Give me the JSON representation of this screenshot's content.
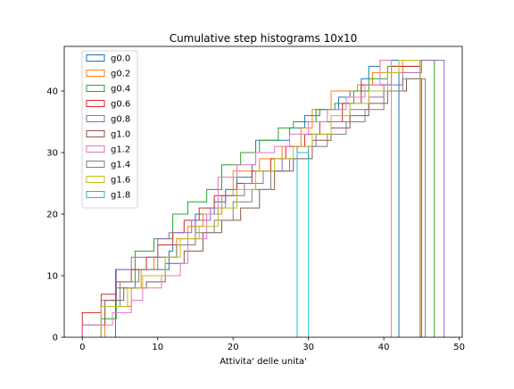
{
  "chart_data": {
    "type": "step",
    "title": "Cumulative step histograms 10x10",
    "xlabel": "Attivita' delle unita'",
    "ylabel": "",
    "xlim": [
      -2.4,
      50.4
    ],
    "ylim": [
      0,
      47.25
    ],
    "xticks": [
      0,
      10,
      20,
      30,
      40,
      50
    ],
    "yticks": [
      0,
      10,
      20,
      30,
      40
    ],
    "grid": false,
    "legend_position": "top-left",
    "series": [
      {
        "name": "g0.0",
        "color": "#1f77b4",
        "x": [
          4.4,
          11.5,
          12.0,
          15.0,
          17.5,
          19.0,
          20.5,
          22.5,
          23.0,
          27.5,
          29.5,
          31.5,
          34.0,
          35.5,
          37.0,
          38.0,
          39.5,
          42.0
        ],
        "y": [
          11,
          14,
          15,
          20,
          22,
          24,
          26,
          28,
          32,
          34,
          36,
          37,
          39,
          40,
          42,
          44,
          45,
          45
        ]
      },
      {
        "name": "g0.2",
        "color": "#ff7f0e",
        "x": [
          3.0,
          6.5,
          7.8,
          9.5,
          12.5,
          14.0,
          16.0,
          18.5,
          20.0,
          23.5,
          26.5,
          29.0,
          30.5,
          33.0,
          36.5,
          38.5,
          42.5,
          44.8
        ],
        "y": [
          5,
          8,
          11,
          13,
          16,
          18,
          20,
          23,
          27,
          29,
          31,
          34,
          37,
          40,
          41,
          43,
          45,
          45
        ]
      },
      {
        "name": "g0.4",
        "color": "#2ca02c",
        "x": [
          2.5,
          4.5,
          7.0,
          9.5,
          12.0,
          14.0,
          16.5,
          18.5,
          21.0,
          23.5,
          26.0,
          28.0,
          31.0,
          33.5,
          36.0,
          38.0,
          40.5,
          44.8,
          46.7
        ],
        "y": [
          3,
          8,
          14,
          16,
          20,
          22,
          24,
          28,
          30,
          32,
          34,
          35,
          37,
          38,
          40,
          42,
          44,
          45,
          45
        ]
      },
      {
        "name": "g0.6",
        "color": "#d62728",
        "x": [
          0.0,
          2.5,
          4.5,
          6.5,
          8.5,
          10.0,
          12.0,
          13.5,
          15.5,
          17.5,
          20.5,
          22.5,
          25.0,
          27.0,
          29.5,
          31.5,
          34.5,
          37.0,
          41.0,
          44.8
        ],
        "y": [
          4,
          7,
          9,
          11,
          13,
          15,
          17,
          19,
          21,
          23,
          25,
          27,
          29,
          31,
          33,
          35,
          38,
          41,
          44,
          44
        ]
      },
      {
        "name": "g0.8",
        "color": "#9467bd",
        "x": [
          2.5,
          4.5,
          6.5,
          10.0,
          11.5,
          14.5,
          17.0,
          19.0,
          21.5,
          24.0,
          26.5,
          28.5,
          31.0,
          33.0,
          35.5,
          38.0,
          40.0,
          42.5,
          45.0,
          48.0
        ],
        "y": [
          6,
          11,
          13,
          16,
          17,
          19,
          21,
          23,
          25,
          27,
          29,
          31,
          33,
          35,
          37,
          39,
          41,
          43,
          45,
          45
        ]
      },
      {
        "name": "g1.0",
        "color": "#8c564b",
        "x": [
          0.0,
          3.0,
          5.5,
          8.5,
          11.0,
          13.5,
          16.0,
          18.5,
          21.0,
          23.5,
          25.5,
          28.0,
          30.5,
          33.0,
          35.5,
          38.0,
          40.5,
          43.0,
          45.0
        ],
        "y": [
          2,
          6,
          8,
          9,
          12,
          14,
          17,
          19,
          21,
          24,
          27,
          29,
          32,
          34,
          36,
          38,
          40,
          42,
          42
        ]
      },
      {
        "name": "g1.2",
        "color": "#e377c2",
        "x": [
          0.0,
          4.0,
          6.5,
          8.0,
          10.5,
          13.0,
          14.0,
          16.5,
          18.0,
          20.5,
          23.0,
          25.5,
          27.5,
          30.0,
          32.5,
          35.0,
          37.5,
          39.5,
          41.0
        ],
        "y": [
          2,
          4,
          6,
          8,
          10,
          12,
          16,
          20,
          26,
          28,
          30,
          31,
          33,
          35,
          37,
          39,
          41,
          45,
          45
        ]
      },
      {
        "name": "g1.4",
        "color": "#7f7f7f",
        "x": [
          2.5,
          5.0,
          7.5,
          10.0,
          12.5,
          15.0,
          17.5,
          20.0,
          22.5,
          25.0,
          27.5,
          30.0,
          32.5,
          35.0,
          37.5,
          40.0,
          42.5,
          45.5
        ],
        "y": [
          5,
          9,
          11,
          13,
          15,
          17,
          19,
          22,
          24,
          27,
          29,
          31,
          33,
          35,
          37,
          40,
          42,
          42
        ]
      },
      {
        "name": "g1.6",
        "color": "#bcbd22",
        "x": [
          2.5,
          6.0,
          8.0,
          11.0,
          13.0,
          15.5,
          18.0,
          20.5,
          23.0,
          25.5,
          28.0,
          30.5,
          33.0,
          35.5,
          38.0,
          40.5,
          42.0,
          44.8
        ],
        "y": [
          5,
          8,
          10,
          13,
          16,
          18,
          21,
          24,
          27,
          29,
          31,
          33,
          36,
          38,
          40,
          43,
          45,
          45
        ]
      },
      {
        "name": "g1.8",
        "color": "#17becf",
        "x": [
          28.5,
          30.0
        ],
        "y": [
          30,
          30
        ]
      }
    ]
  }
}
